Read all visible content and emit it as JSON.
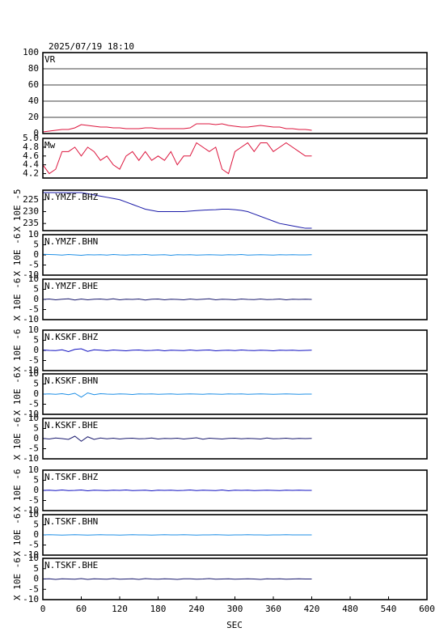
{
  "chart_data": [
    {
      "type": "line",
      "title": "2025/07/19 18:10",
      "xlim": [
        0,
        600
      ],
      "ylim": [
        0,
        100
      ],
      "yticks": [
        0,
        20,
        40,
        60,
        80,
        100
      ],
      "grid": true,
      "x": [
        0,
        10,
        20,
        30,
        40,
        50,
        60,
        70,
        80,
        90,
        100,
        110,
        120,
        130,
        140,
        150,
        160,
        170,
        180,
        190,
        200,
        210,
        220,
        230,
        240,
        250,
        260,
        270,
        280,
        290,
        300,
        310,
        320,
        330,
        340,
        350,
        360,
        370,
        380,
        390,
        400,
        410,
        420
      ],
      "series": [
        {
          "name": "VR",
          "color": "#dc143c",
          "values": [
            2,
            3,
            4,
            5,
            5,
            7,
            11,
            10,
            9,
            8,
            8,
            7,
            7,
            6,
            6,
            6,
            7,
            7,
            6,
            6,
            6,
            6,
            6,
            7,
            12,
            12,
            12,
            11,
            12,
            10,
            9,
            8,
            8,
            9,
            10,
            9,
            8,
            8,
            6,
            6,
            5,
            5,
            4
          ]
        }
      ]
    },
    {
      "type": "line",
      "xlim": [
        0,
        600
      ],
      "ylim": [
        4.1,
        5.0
      ],
      "yticks": [
        4.2,
        4.4,
        4.6,
        4.8,
        {
          "value": 5.0,
          "label": "5.0"
        }
      ],
      "x": [
        0,
        10,
        20,
        30,
        40,
        50,
        60,
        70,
        80,
        90,
        100,
        110,
        120,
        130,
        140,
        150,
        160,
        170,
        180,
        190,
        200,
        210,
        220,
        230,
        240,
        250,
        260,
        270,
        280,
        290,
        300,
        310,
        320,
        330,
        340,
        350,
        360,
        370,
        380,
        390,
        400,
        410,
        420
      ],
      "series": [
        {
          "name": "Mw",
          "color": "#dc143c",
          "values": [
            4.4,
            4.2,
            4.3,
            4.7,
            4.7,
            4.8,
            4.6,
            4.8,
            4.7,
            4.5,
            4.6,
            4.4,
            4.3,
            4.6,
            4.7,
            4.5,
            4.7,
            4.5,
            4.6,
            4.5,
            4.7,
            4.4,
            4.6,
            4.6,
            4.9,
            4.8,
            4.7,
            4.8,
            4.3,
            4.2,
            4.7,
            4.8,
            4.9,
            4.7,
            4.9,
            4.9,
            4.7,
            4.8,
            4.9,
            4.8,
            4.7,
            4.6,
            4.6
          ]
        }
      ]
    },
    {
      "type": "line",
      "ylabel": "X 10E -5",
      "xlim": [
        0,
        600
      ],
      "ylim": [
        221,
        238
      ],
      "y_inverted": true,
      "yticks": [
        225,
        230,
        235
      ],
      "x": [
        0,
        10,
        20,
        30,
        40,
        50,
        60,
        70,
        80,
        90,
        100,
        110,
        120,
        130,
        140,
        150,
        160,
        170,
        180,
        190,
        200,
        210,
        220,
        230,
        240,
        250,
        260,
        270,
        280,
        290,
        300,
        310,
        320,
        330,
        340,
        350,
        360,
        370,
        380,
        390,
        400,
        410,
        420
      ],
      "series": [
        {
          "name": "N.YMZF.BHZ",
          "color": "#1a1aa8",
          "values": [
            222,
            222,
            222,
            222,
            222,
            222,
            222,
            222.5,
            223,
            223.5,
            224,
            224.5,
            225,
            226,
            227,
            228,
            229,
            229.5,
            230,
            230,
            230,
            230,
            230,
            229.8,
            229.6,
            229.4,
            229.3,
            229.2,
            229,
            229,
            229.2,
            229.5,
            230,
            231,
            232,
            233,
            234,
            235,
            235.5,
            236,
            236.5,
            237,
            237
          ]
        }
      ]
    },
    {
      "type": "line",
      "ylabel": "X 10E -6",
      "xlim": [
        0,
        600
      ],
      "ylim": [
        -10,
        10
      ],
      "yticks": [
        -10,
        -5,
        0,
        5,
        10
      ],
      "x": [
        0,
        10,
        20,
        30,
        40,
        50,
        60,
        70,
        80,
        90,
        100,
        110,
        120,
        130,
        140,
        150,
        160,
        170,
        180,
        190,
        200,
        210,
        220,
        230,
        240,
        250,
        260,
        270,
        280,
        290,
        300,
        310,
        320,
        330,
        340,
        350,
        360,
        370,
        380,
        390,
        400,
        410,
        420
      ],
      "series": [
        {
          "name": "N.YMZF.BHN",
          "color": "#1e8fe6",
          "values": [
            0.3,
            0.2,
            0.1,
            -0.1,
            0.2,
            0,
            -0.2,
            0.1,
            0,
            0.1,
            -0.1,
            0.2,
            0,
            -0.1,
            0.1,
            0,
            0.2,
            -0.1,
            0,
            0.1,
            -0.2,
            0.1,
            0,
            0.1,
            -0.1,
            0,
            0.1,
            0,
            -0.1,
            0.1,
            0,
            0.2,
            -0.1,
            0,
            0.1,
            0,
            -0.1,
            0.1,
            0,
            0.1,
            0,
            0,
            0.1
          ]
        }
      ]
    },
    {
      "type": "line",
      "ylabel": "X 10E -6",
      "xlim": [
        0,
        600
      ],
      "ylim": [
        -10,
        10
      ],
      "yticks": [
        -10,
        -5,
        0,
        5,
        10
      ],
      "x": [
        0,
        10,
        20,
        30,
        40,
        50,
        60,
        70,
        80,
        90,
        100,
        110,
        120,
        130,
        140,
        150,
        160,
        170,
        180,
        190,
        200,
        210,
        220,
        230,
        240,
        250,
        260,
        270,
        280,
        290,
        300,
        310,
        320,
        330,
        340,
        350,
        360,
        370,
        380,
        390,
        400,
        410,
        420
      ],
      "series": [
        {
          "name": "N.YMZF.BHE",
          "color": "#1a1a6e",
          "values": [
            0,
            0.2,
            -0.2,
            0.1,
            0.3,
            -0.3,
            0.2,
            -0.2,
            0.1,
            0.2,
            -0.1,
            0.3,
            -0.2,
            0.1,
            0,
            0.2,
            -0.3,
            0.1,
            0.2,
            -0.2,
            0.1,
            0,
            -0.2,
            0.2,
            -0.1,
            0.1,
            0.3,
            -0.2,
            0.1,
            0,
            -0.2,
            0.2,
            0,
            -0.1,
            0.2,
            -0.1,
            0,
            0.2,
            -0.2,
            0.1,
            0,
            0.1,
            0
          ]
        }
      ]
    },
    {
      "type": "line",
      "ylabel": "X 10E -6",
      "xlim": [
        0,
        600
      ],
      "ylim": [
        -10,
        10
      ],
      "yticks": [
        -10,
        -5,
        0,
        5,
        10
      ],
      "x": [
        0,
        10,
        20,
        30,
        40,
        50,
        60,
        70,
        80,
        90,
        100,
        110,
        120,
        130,
        140,
        150,
        160,
        170,
        180,
        190,
        200,
        210,
        220,
        230,
        240,
        250,
        260,
        270,
        280,
        290,
        300,
        310,
        320,
        330,
        340,
        350,
        360,
        370,
        380,
        390,
        400,
        410,
        420
      ],
      "series": [
        {
          "name": "N.KSKF.BHZ",
          "color": "#1010c0",
          "values": [
            0.2,
            0,
            -0.1,
            0.3,
            -0.6,
            0.5,
            0.8,
            -0.5,
            0.3,
            0.1,
            -0.2,
            0.2,
            0,
            -0.2,
            0.1,
            0.2,
            -0.1,
            0,
            0.2,
            -0.2,
            0.1,
            0,
            -0.1,
            0.2,
            -0.1,
            0.1,
            0.2,
            -0.2,
            0,
            0.1,
            -0.1,
            0.2,
            0,
            -0.1,
            0.1,
            0,
            -0.2,
            0.1,
            0,
            0.1,
            -0.1,
            0,
            0.1
          ]
        }
      ]
    },
    {
      "type": "line",
      "ylabel": "X 10E -6",
      "xlim": [
        0,
        600
      ],
      "ylim": [
        -10,
        10
      ],
      "yticks": [
        -10,
        -5,
        0,
        5,
        10
      ],
      "x": [
        0,
        10,
        20,
        30,
        40,
        50,
        60,
        70,
        80,
        90,
        100,
        110,
        120,
        130,
        140,
        150,
        160,
        170,
        180,
        190,
        200,
        210,
        220,
        230,
        240,
        250,
        260,
        270,
        280,
        290,
        300,
        310,
        320,
        330,
        340,
        350,
        360,
        370,
        380,
        390,
        400,
        410,
        420
      ],
      "series": [
        {
          "name": "N.KSKF.BHN",
          "color": "#1e8fe6",
          "values": [
            0,
            0.1,
            -0.1,
            0.2,
            -0.3,
            0.4,
            -1.5,
            0.6,
            -0.3,
            0.2,
            0,
            -0.1,
            0.1,
            0,
            -0.2,
            0.1,
            0,
            0.1,
            -0.1,
            0,
            0.1,
            -0.1,
            0,
            0.1,
            0,
            -0.1,
            0.1,
            0,
            -0.1,
            0.1,
            0,
            0.1,
            -0.1,
            0,
            0.1,
            0,
            -0.1,
            0,
            0.1,
            0,
            -0.1,
            0,
            0
          ]
        }
      ]
    },
    {
      "type": "line",
      "ylabel": "X 10E -6",
      "xlim": [
        0,
        600
      ],
      "ylim": [
        -10,
        10
      ],
      "yticks": [
        -10,
        -5,
        0,
        5,
        10
      ],
      "x": [
        0,
        10,
        20,
        30,
        40,
        50,
        60,
        70,
        80,
        90,
        100,
        110,
        120,
        130,
        140,
        150,
        160,
        170,
        180,
        190,
        200,
        210,
        220,
        230,
        240,
        250,
        260,
        270,
        280,
        290,
        300,
        310,
        320,
        330,
        340,
        350,
        360,
        370,
        380,
        390,
        400,
        410,
        420
      ],
      "series": [
        {
          "name": "N.KSKF.BHE",
          "color": "#1a1a6e",
          "values": [
            0.1,
            -0.2,
            0.3,
            0,
            -0.4,
            1.2,
            -1.3,
            0.9,
            -0.4,
            0.3,
            -0.1,
            0.2,
            -0.2,
            0.1,
            0.2,
            -0.1,
            0,
            0.3,
            -0.2,
            0.1,
            0,
            0.2,
            -0.2,
            0.1,
            0.4,
            -0.3,
            0.2,
            0,
            -0.2,
            0.1,
            0.2,
            -0.1,
            0.1,
            0,
            -0.2,
            0.3,
            -0.1,
            0,
            0.2,
            -0.1,
            0.1,
            0,
            0.1
          ]
        }
      ]
    },
    {
      "type": "line",
      "ylabel": "X 10E -6",
      "xlim": [
        0,
        600
      ],
      "ylim": [
        -10,
        10
      ],
      "yticks": [
        -10,
        -5,
        0,
        5,
        10
      ],
      "x": [
        0,
        10,
        20,
        30,
        40,
        50,
        60,
        70,
        80,
        90,
        100,
        110,
        120,
        130,
        140,
        150,
        160,
        170,
        180,
        190,
        200,
        210,
        220,
        230,
        240,
        250,
        260,
        270,
        280,
        290,
        300,
        310,
        320,
        330,
        340,
        350,
        360,
        370,
        380,
        390,
        400,
        410,
        420
      ],
      "series": [
        {
          "name": "N.TSKF.BHZ",
          "color": "#1010c0",
          "values": [
            0,
            0.1,
            -0.1,
            0.2,
            -0.1,
            0,
            0.2,
            -0.2,
            0.1,
            0,
            -0.1,
            0.1,
            0,
            0.2,
            -0.1,
            0,
            0.1,
            -0.2,
            0.1,
            0,
            0.1,
            -0.1,
            0,
            0.2,
            -0.1,
            0.1,
            0,
            -0.1,
            0.2,
            -0.2,
            0.1,
            0,
            0.1,
            -0.1,
            0,
            0.1,
            0,
            -0.1,
            0.1,
            0,
            0.1,
            0,
            0
          ]
        }
      ]
    },
    {
      "type": "line",
      "ylabel": "X 10E -6",
      "xlim": [
        0,
        600
      ],
      "ylim": [
        -10,
        10
      ],
      "yticks": [
        -10,
        -5,
        0,
        5,
        10
      ],
      "x": [
        0,
        10,
        20,
        30,
        40,
        50,
        60,
        70,
        80,
        90,
        100,
        110,
        120,
        130,
        140,
        150,
        160,
        170,
        180,
        190,
        200,
        210,
        220,
        230,
        240,
        250,
        260,
        270,
        280,
        290,
        300,
        310,
        320,
        330,
        340,
        350,
        360,
        370,
        380,
        390,
        400,
        410,
        420
      ],
      "series": [
        {
          "name": "N.TSKF.BHN",
          "color": "#1e8fe6",
          "values": [
            0,
            0.1,
            0,
            -0.1,
            0,
            0.1,
            0,
            -0.1,
            0,
            0.1,
            0,
            0,
            -0.1,
            0,
            0.1,
            0,
            0,
            -0.1,
            0,
            0.1,
            0,
            0,
            0.1,
            0,
            -0.1,
            0,
            0,
            0.1,
            0,
            -0.1,
            0,
            0,
            0.1,
            0,
            0,
            -0.1,
            0,
            0,
            0.1,
            0,
            0,
            0,
            0
          ]
        }
      ]
    },
    {
      "type": "line",
      "ylabel": "X 10E -6",
      "xlim": [
        0,
        600
      ],
      "ylim": [
        -10,
        10
      ],
      "yticks": [
        -10,
        -5,
        0,
        5,
        10
      ],
      "xlabel": "SEC",
      "xticks": [
        0,
        60,
        120,
        180,
        240,
        300,
        360,
        420,
        480,
        540,
        600
      ],
      "x": [
        0,
        10,
        20,
        30,
        40,
        50,
        60,
        70,
        80,
        90,
        100,
        110,
        120,
        130,
        140,
        150,
        160,
        170,
        180,
        190,
        200,
        210,
        220,
        230,
        240,
        250,
        260,
        270,
        280,
        290,
        300,
        310,
        320,
        330,
        340,
        350,
        360,
        370,
        380,
        390,
        400,
        410,
        420
      ],
      "series": [
        {
          "name": "N.TSKF.BHE",
          "color": "#1a1a6e",
          "values": [
            0,
            0.1,
            -0.2,
            0.1,
            0,
            -0.1,
            0.2,
            -0.2,
            0.1,
            0,
            -0.1,
            0.2,
            -0.1,
            0,
            0.1,
            -0.2,
            0.2,
            0,
            -0.1,
            0.1,
            0,
            -0.2,
            0.1,
            0.1,
            -0.1,
            0,
            0.2,
            -0.1,
            0,
            0.1,
            -0.1,
            0,
            0.1,
            0,
            -0.2,
            0.1,
            0,
            0.1,
            -0.1,
            0,
            0.1,
            0,
            0
          ]
        }
      ]
    }
  ]
}
